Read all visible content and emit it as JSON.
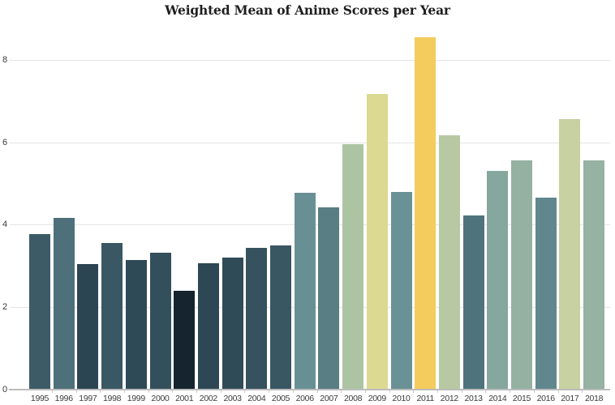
{
  "chart_data": {
    "type": "bar",
    "title": "Weighted Mean of Anime Scores per Year",
    "xlabel": "",
    "ylabel": "",
    "categories": [
      "1995",
      "1996",
      "1997",
      "1998",
      "1999",
      "2000",
      "2001",
      "2002",
      "2003",
      "2004",
      "2005",
      "2006",
      "2007",
      "2008",
      "2009",
      "2010",
      "2011",
      "2012",
      "2013",
      "2014",
      "2015",
      "2016",
      "2017",
      "2018"
    ],
    "values": [
      3.78,
      4.18,
      3.05,
      3.57,
      3.14,
      3.33,
      2.4,
      3.07,
      3.2,
      3.44,
      3.5,
      4.78,
      4.42,
      5.97,
      7.18,
      4.81,
      8.57,
      6.18,
      4.24,
      5.32,
      5.57,
      4.67,
      6.57,
      5.57
    ],
    "bar_colors": [
      "#3d5b67",
      "#4d707a",
      "#2c4552",
      "#3a5764",
      "#2f4a57",
      "#344f5c",
      "#16242f",
      "#2d4754",
      "#304b58",
      "#36525f",
      "#395663",
      "#689094",
      "#597e84",
      "#adc4a3",
      "#dcd992",
      "#6a9195",
      "#f3cc5d",
      "#b7c8a3",
      "#4e737d",
      "#86a79d",
      "#94b1a2",
      "#61878e",
      "#c7d1a1",
      "#95b2a3"
    ],
    "ylim": [
      0,
      9
    ],
    "yticks": [
      0,
      2,
      4,
      6,
      8
    ],
    "grid": true,
    "legend_position": "none",
    "colors": {
      "background": "#ffffff",
      "gridline": "#e4e4e4",
      "axis_line": "#bcbcbc",
      "tick_label": "#3a3a3a",
      "title": "#1f1f1f"
    }
  }
}
